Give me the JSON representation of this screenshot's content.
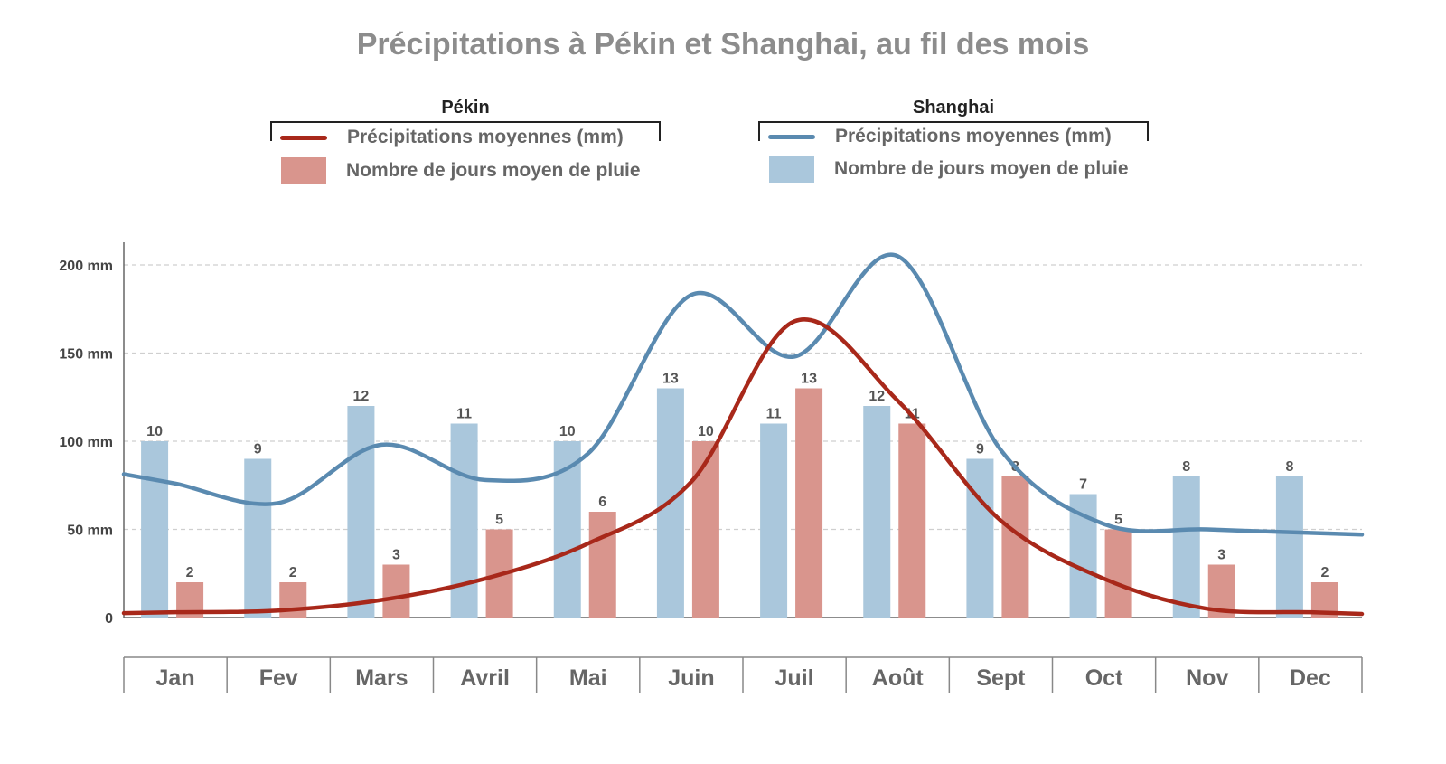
{
  "colors": {
    "pekin_line": "#a8281a",
    "pekin_bar": "#d9958d",
    "shanghai_line": "#5a8ab0",
    "shanghai_bar": "#aac7dc",
    "grid": "#cfcfcf",
    "axis": "#666666",
    "title": "#8c8c8c"
  },
  "legend": {
    "pekin": {
      "heading": "Pékin",
      "line_label": "Précipitations moyennes (mm)",
      "bar_label": "Nombre de jours moyen de pluie"
    },
    "shanghai": {
      "heading": "Shanghai",
      "line_label": "Précipitations moyennes (mm)",
      "bar_label": "Nombre de jours moyen de pluie"
    }
  },
  "chart_data": {
    "type": "bar",
    "title": "Précipitations à Pékin et Shanghai, au fil des mois",
    "categories": [
      "Jan",
      "Fev",
      "Mars",
      "Avril",
      "Mai",
      "Juin",
      "Juil",
      "Août",
      "Sept",
      "Oct",
      "Nov",
      "Dec"
    ],
    "y_ticks": [
      "0",
      "50 mm",
      "100 mm",
      "150 mm",
      "200 mm"
    ],
    "y_tick_values": [
      0,
      50,
      100,
      150,
      200
    ],
    "ylim": [
      0,
      212
    ],
    "grid": true,
    "legend_position": "top",
    "bar_series": [
      {
        "name": "Shanghai",
        "values": [
          10,
          9,
          12,
          11,
          10,
          13,
          11,
          12,
          9,
          7,
          8,
          8
        ]
      },
      {
        "name": "Pékin",
        "values": [
          2,
          2,
          3,
          5,
          6,
          10,
          13,
          11,
          8,
          5,
          3,
          2
        ]
      }
    ],
    "line_series": [
      {
        "name": "Shanghai",
        "values": [
          76,
          65,
          98,
          78,
          93,
          183,
          148,
          205,
          95,
          53,
          50,
          48
        ]
      },
      {
        "name": "Pékin",
        "values": [
          3,
          4,
          10,
          22,
          42,
          77,
          168,
          123,
          55,
          22,
          5,
          3
        ]
      }
    ]
  }
}
